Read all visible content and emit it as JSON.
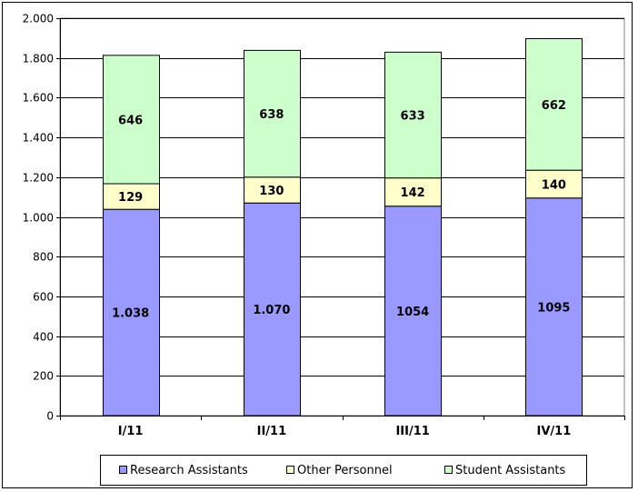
{
  "chart_data": {
    "type": "bar",
    "stacked": true,
    "title": "",
    "xlabel": "",
    "ylabel": "",
    "ylim": [
      0,
      2000
    ],
    "y_ticks": [
      0,
      200,
      400,
      600,
      800,
      1000,
      1200,
      1400,
      1600,
      1800,
      2000
    ],
    "y_tick_labels": [
      "0",
      "200",
      "400",
      "600",
      "800",
      "1.000",
      "1.200",
      "1.400",
      "1.600",
      "1.800",
      "2.000"
    ],
    "grid": true,
    "legend_position": "bottom",
    "categories": [
      "I/11",
      "II/11",
      "III/11",
      "IV/11"
    ],
    "series": [
      {
        "name": "Research Assistants",
        "color": "#9999ff",
        "values": [
          1038,
          1070,
          1054,
          1095
        ],
        "labels": [
          "1.038",
          "1.070",
          "1054",
          "1095"
        ]
      },
      {
        "name": "Other Personnel",
        "color": "#ffffcc",
        "values": [
          129,
          130,
          142,
          140
        ],
        "labels": [
          "129",
          "130",
          "142",
          "140"
        ]
      },
      {
        "name": "Student Assistants",
        "color": "#ccffcc",
        "values": [
          646,
          638,
          633,
          662
        ],
        "labels": [
          "646",
          "638",
          "633",
          "662"
        ]
      }
    ]
  }
}
